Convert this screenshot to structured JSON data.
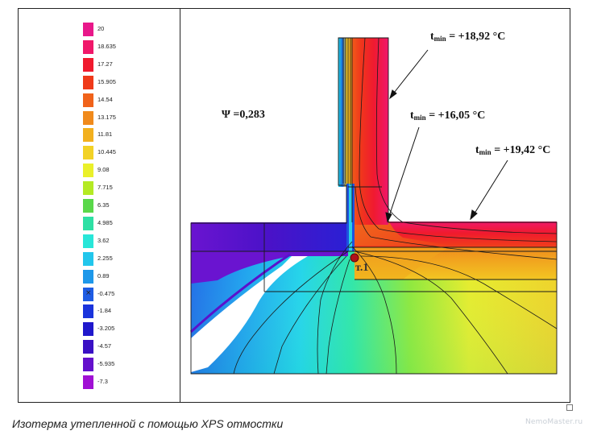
{
  "legend": {
    "items": [
      {
        "label": "20",
        "color": "#e8188a"
      },
      {
        "label": "18.635",
        "color": "#f0186a"
      },
      {
        "label": "17.27",
        "color": "#f01a2e"
      },
      {
        "label": "15.905",
        "color": "#ef3a1a"
      },
      {
        "label": "14.54",
        "color": "#f0621a"
      },
      {
        "label": "13.175",
        "color": "#f08a1c"
      },
      {
        "label": "11.81",
        "color": "#f2b01e"
      },
      {
        "label": "10.445",
        "color": "#f2d226"
      },
      {
        "label": "9.08",
        "color": "#eaf02a"
      },
      {
        "label": "7.715",
        "color": "#b4ea24"
      },
      {
        "label": "6.35",
        "color": "#5ad84a"
      },
      {
        "label": "4.985",
        "color": "#2ee0a4"
      },
      {
        "label": "3.62",
        "color": "#28e6d8"
      },
      {
        "label": "2.255",
        "color": "#22c6ec"
      },
      {
        "label": "0.89",
        "color": "#1e98ea"
      },
      {
        "label": "-0.475",
        "color": "#1e5ce4",
        "mark": "×"
      },
      {
        "label": "-1.84",
        "color": "#1a34dc"
      },
      {
        "label": "-3.205",
        "color": "#2018cc"
      },
      {
        "label": "-4.57",
        "color": "#3a10c4"
      },
      {
        "label": "-5.935",
        "color": "#6410cc"
      },
      {
        "label": "-7.3",
        "color": "#a010d4"
      }
    ]
  },
  "annotations": {
    "psi": "Ψ =0,283",
    "tmin_1": {
      "t": "t",
      "sub": "min",
      "value": " = +18,92 °C"
    },
    "tmin_2": {
      "t": "t",
      "sub": "min",
      "value": " = +16,05 °C"
    },
    "tmin_3": {
      "t": "t",
      "sub": "min",
      "value": " = +19,42 °C"
    },
    "point": "т.1"
  },
  "caption": "Изотерма утепленной с помощью XPS отмостки",
  "watermark": "NemoMaster.ru"
}
